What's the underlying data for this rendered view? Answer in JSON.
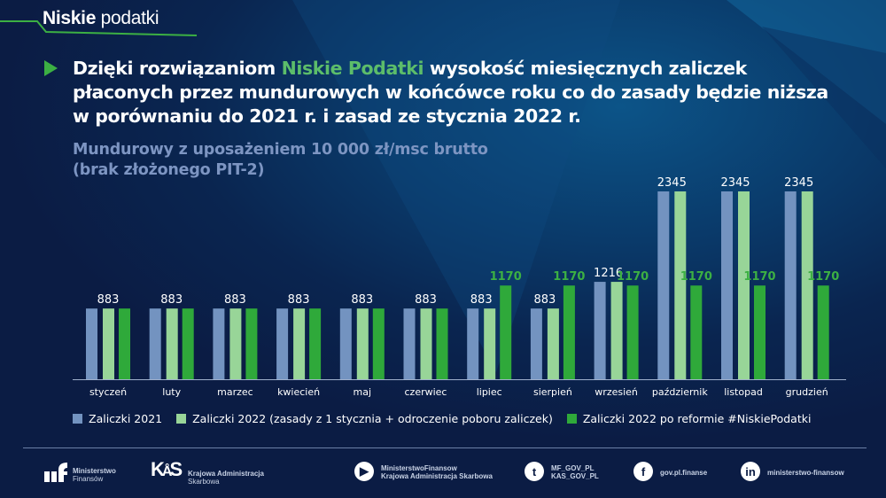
{
  "brand": {
    "bold": "Niskie",
    "light": "podatki"
  },
  "headline": {
    "part1": "Dzięki rozwiązaniom ",
    "highlight": "Niskie Podatki",
    "part2": " wysokość miesięcznych zaliczek płaconych przez mundurowych w końcówce roku co do zasady będzie niższa w porównaniu do 2021 r. i zasad ze stycznia 2022 r."
  },
  "subtitle": {
    "line1": "Mundurowy z uposażeniem 10 000 zł/msc brutto",
    "line2": "(brak złożonego PIT-2)"
  },
  "colors": {
    "accent_green": "#3cb043",
    "highlight_green": "#5cbd6a",
    "subtitle": "#7d95c2",
    "background": "#0b1c44"
  },
  "chart_data": {
    "type": "bar",
    "categories": [
      "styczeń",
      "luty",
      "marzec",
      "kwiecień",
      "maj",
      "czerwiec",
      "lipiec",
      "sierpień",
      "wrzesień",
      "październik",
      "listopad",
      "grudzień"
    ],
    "series": [
      {
        "name": "Zaliczki 2021",
        "color": "#7393c0",
        "values": [
          883,
          883,
          883,
          883,
          883,
          883,
          883,
          883,
          1216,
          2345,
          2345,
          2345
        ]
      },
      {
        "name": "Zaliczki 2022 (zasady z 1 stycznia + odroczenie poboru zaliczek)",
        "color": "#98d598",
        "values": [
          883,
          883,
          883,
          883,
          883,
          883,
          883,
          883,
          1216,
          2345,
          2345,
          2345
        ]
      },
      {
        "name": "Zaliczki 2022 po reformie #NiskiePodatki",
        "color": "#2fa93a",
        "values": [
          883,
          883,
          883,
          883,
          883,
          883,
          1170,
          1170,
          1170,
          1170,
          1170,
          1170
        ]
      }
    ],
    "ylim": [
      0,
      2345
    ],
    "grid": false,
    "legend": "bottom",
    "xlabel": "",
    "ylabel": ""
  },
  "footer": {
    "mf": {
      "line1": "Ministerstwo",
      "line2": "Finansów"
    },
    "kas": {
      "line1": "Krajowa Administracja",
      "line2": "Skarbowa"
    },
    "youtube": {
      "line1": "MinisterstwoFinansow",
      "line2": "Krajowa Administracja Skarbowa",
      "icon": "youtube-icon"
    },
    "twitter": {
      "line1": "MF_GOV_PL",
      "line2": "KAS_GOV_PL",
      "icon": "twitter-icon"
    },
    "facebook": {
      "line1": "gov.pl.finanse",
      "icon": "facebook-icon"
    },
    "linkedin": {
      "line1": "ministerstwo-finansow",
      "icon": "linkedin-icon"
    }
  }
}
